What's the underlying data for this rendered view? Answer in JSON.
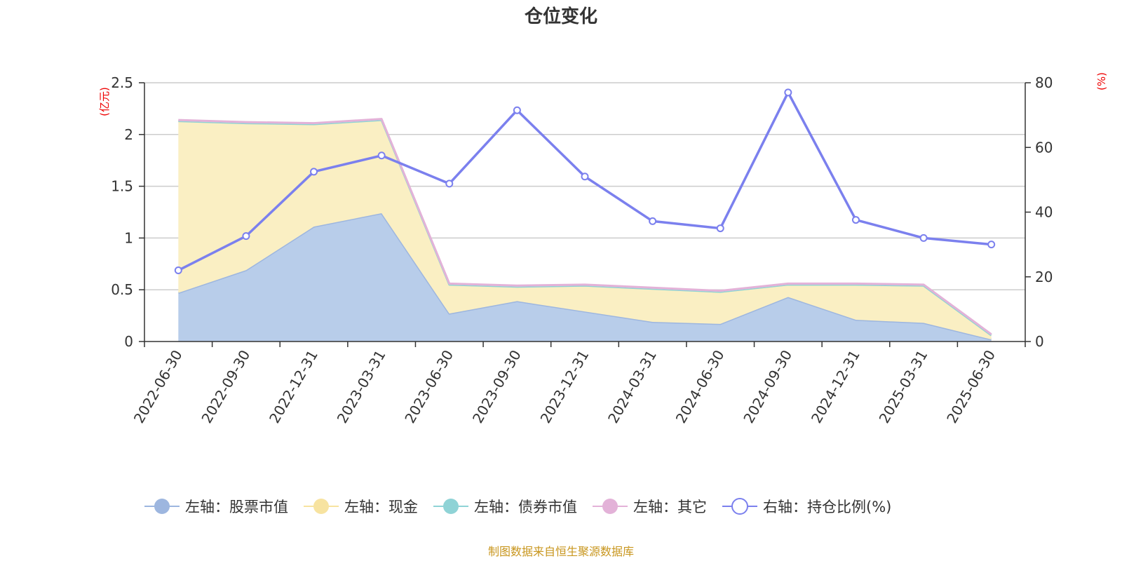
{
  "chart_data": {
    "type": "area",
    "title": "仓位变化",
    "left_axis_unit": "(亿元)",
    "right_axis_unit": "(%)",
    "categories": [
      "2022-06-30",
      "2022-09-30",
      "2022-12-31",
      "2023-03-31",
      "2023-06-30",
      "2023-09-30",
      "2023-12-31",
      "2024-03-31",
      "2024-06-30",
      "2024-09-30",
      "2024-12-31",
      "2025-03-31",
      "2025-06-30"
    ],
    "left_ylim": [
      0,
      2.5
    ],
    "left_yticks": [
      "0",
      "0.5",
      "1",
      "1.5",
      "2",
      "2.5"
    ],
    "right_ylim": [
      0,
      80
    ],
    "right_yticks": [
      "0",
      "20",
      "40",
      "60",
      "80"
    ],
    "grid": true,
    "legend_position": "bottom",
    "series": [
      {
        "name": "左轴：股票市值",
        "axis": "left",
        "kind": "area",
        "color": "#9db6df",
        "fill": "#b8cdea",
        "values": [
          0.47,
          0.69,
          1.11,
          1.24,
          0.27,
          0.39,
          0.29,
          0.19,
          0.17,
          0.43,
          0.21,
          0.18,
          0.02
        ]
      },
      {
        "name": "左轴：现金",
        "axis": "left",
        "kind": "area",
        "color": "#f7e3a0",
        "fill": "#faefc3",
        "values": [
          1.66,
          1.42,
          0.99,
          0.9,
          0.28,
          0.14,
          0.25,
          0.32,
          0.31,
          0.12,
          0.34,
          0.36,
          0.04
        ]
      },
      {
        "name": "左轴：债券市值",
        "axis": "left",
        "kind": "area",
        "color": "#8fd3d6",
        "fill": "#bde6e8",
        "values": [
          0,
          0,
          0,
          0,
          0,
          0,
          0,
          0,
          0,
          0,
          0,
          0,
          0
        ]
      },
      {
        "name": "左轴：其它",
        "axis": "left",
        "kind": "area",
        "color": "#e3b2d8",
        "fill": "#f1d5eb",
        "values": [
          0.01,
          0.01,
          0.01,
          0.01,
          0.01,
          0.01,
          0.01,
          0.01,
          0.01,
          0.01,
          0.01,
          0.01,
          0.01
        ]
      },
      {
        "name": "右轴：持仓比例(%)",
        "axis": "right",
        "kind": "line",
        "color": "#7b80ee",
        "values": [
          22,
          32.6,
          52.5,
          57.5,
          48.8,
          71.5,
          51,
          37.2,
          35,
          77,
          37.6,
          32,
          30
        ]
      }
    ],
    "source_note": "制图数据来自恒生聚源数据库"
  }
}
